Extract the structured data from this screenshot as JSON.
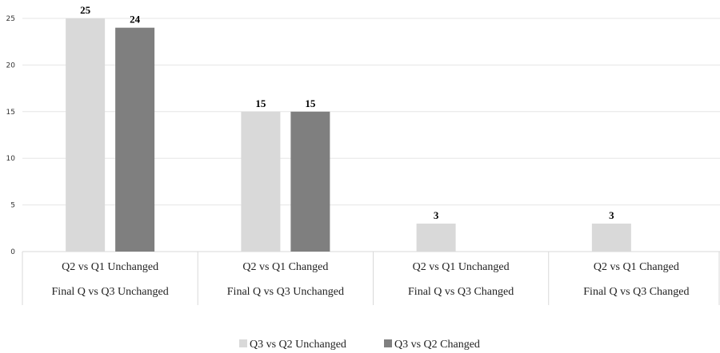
{
  "chart_data": {
    "type": "bar",
    "categories": [
      [
        "Q2 vs Q1 Unchanged",
        "Final Q vs Q3 Unchanged"
      ],
      [
        "Q2 vs Q1 Changed",
        "Final Q vs Q3 Unchanged"
      ],
      [
        "Q2 vs Q1 Unchanged",
        "Final Q vs Q3 Changed"
      ],
      [
        "Q2 vs Q1 Changed",
        "Final Q vs Q3 Changed"
      ]
    ],
    "series": [
      {
        "name": "Q3 vs Q2 Unchanged",
        "values": [
          25,
          15,
          3,
          3
        ],
        "color": "#d9d9d9"
      },
      {
        "name": "Q3 vs Q2 Changed",
        "values": [
          24,
          15,
          null,
          null
        ],
        "color": "#7f7f7f"
      }
    ],
    "yticks": [
      "0",
      "5",
      "10",
      "15",
      "20",
      "25"
    ],
    "ylim": [
      0,
      25
    ],
    "grid": true,
    "legend_position": "bottom",
    "gridline_color": "#e6e6e6",
    "axis_line_color": "#d9d9d9"
  }
}
